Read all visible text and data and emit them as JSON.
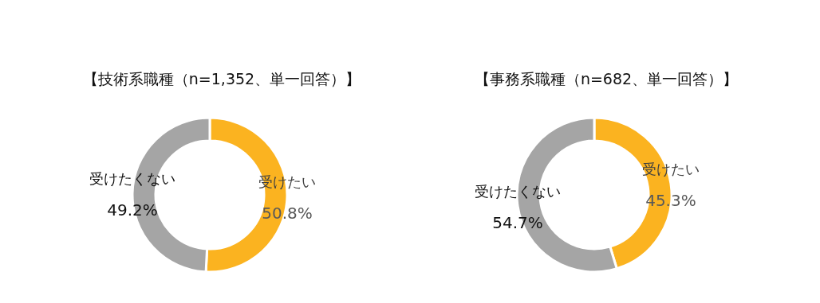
{
  "chart_data": [
    {
      "type": "donut",
      "title": "【技術系職種（n=1,352、単一回答）】",
      "categories": [
        "受けたい",
        "受けたくない"
      ],
      "values": [
        50.8,
        49.2
      ],
      "colors": [
        "#fbb320",
        "#a5a5a5"
      ],
      "data_labels": true,
      "value_labels": [
        "50.8%",
        "49.2%"
      ]
    },
    {
      "type": "donut",
      "title": "【事務系職種（n=682、単一回答）】",
      "categories": [
        "受けたい",
        "受けたくない"
      ],
      "values": [
        45.3,
        54.7
      ],
      "colors": [
        "#fbb320",
        "#a5a5a5"
      ],
      "data_labels": true,
      "value_labels": [
        "45.3%",
        "54.7%"
      ]
    }
  ]
}
